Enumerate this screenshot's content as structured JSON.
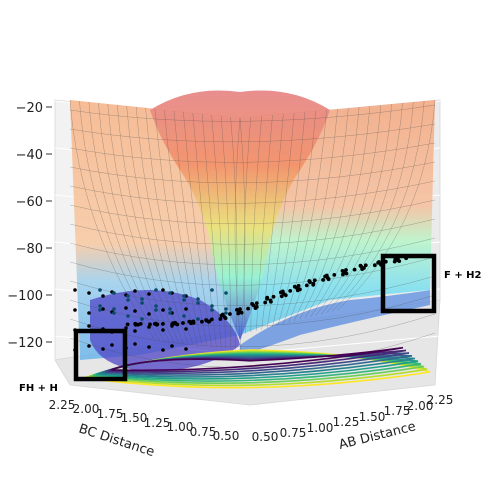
{
  "chart_data": {
    "type": "surface3d",
    "xlabel": "AB Distance",
    "ylabel": "BC Distance",
    "zlabel": "",
    "zticks": [
      "−20",
      "−40",
      "−60",
      "−80",
      "−100",
      "−120"
    ],
    "xticks": [
      "0.50",
      "0.75",
      "1.00",
      "1.25",
      "1.50",
      "1.75",
      "2.00",
      "2.25"
    ],
    "yticks": [
      "2.25",
      "2.00",
      "1.75",
      "1.50",
      "1.25",
      "1.00",
      "0.75",
      "0.50"
    ],
    "zlim": [
      -130,
      -20
    ],
    "colormap": "jet",
    "contour_colormap": "viridis",
    "annotations": [
      "F + H2",
      "FH + H"
    ],
    "highlight_boxes": 2,
    "trajectory": {
      "description_points": [
        {
          "ab": 2.3,
          "bc": 0.75,
          "energy": -104
        },
        {
          "ab": 1.9,
          "bc": 0.76,
          "energy": -105
        },
        {
          "ab": 1.5,
          "bc": 0.77,
          "energy": -108
        },
        {
          "ab": 1.2,
          "bc": 0.8,
          "energy": -112
        },
        {
          "ab": 1.0,
          "bc": 0.95,
          "energy": -118
        },
        {
          "ab": 0.95,
          "bc": 1.3,
          "energy": -125
        },
        {
          "ab": 0.93,
          "bc": 1.7,
          "energy": -128
        },
        {
          "ab": 0.92,
          "bc": 2.2,
          "energy": -130
        }
      ]
    }
  }
}
